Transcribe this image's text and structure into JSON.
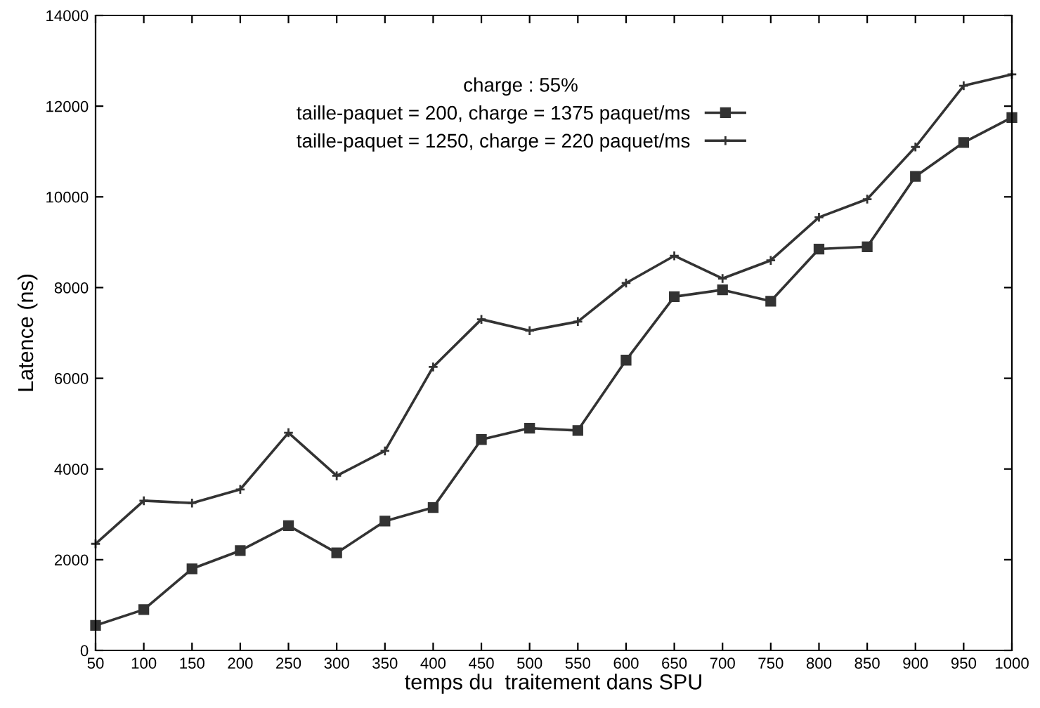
{
  "chart_data": {
    "type": "line",
    "xlabel": "temps du  traitement dans SPU",
    "ylabel": "Latence (ns)",
    "legend_title": "charge : 55%",
    "legend": "top left",
    "grid": false,
    "x": [
      50,
      100,
      150,
      200,
      250,
      300,
      350,
      400,
      450,
      500,
      550,
      600,
      650,
      700,
      750,
      800,
      850,
      900,
      950,
      1000
    ],
    "series": [
      {
        "name": "taille-paquet = 200, charge = 1375 paquet/ms",
        "color": "#333333",
        "marker": "square",
        "values": [
          550,
          900,
          1800,
          2200,
          2750,
          2150,
          2850,
          3150,
          4650,
          4900,
          4850,
          6400,
          7800,
          7950,
          7700,
          8850,
          8900,
          10450,
          11200,
          11750
        ]
      },
      {
        "name": "taille-paquet = 1250, charge = 220 paquet/ms",
        "color": "#333333",
        "marker": "cross",
        "values": [
          2350,
          3300,
          3250,
          3550,
          4800,
          3850,
          4400,
          6250,
          7300,
          7050,
          7250,
          8100,
          8700,
          8200,
          8600,
          9550,
          9950,
          11100,
          12450,
          12700
        ]
      }
    ],
    "xlim": [
      50,
      1000
    ],
    "xticks": [
      50,
      100,
      150,
      200,
      250,
      300,
      350,
      400,
      450,
      500,
      550,
      600,
      650,
      700,
      750,
      800,
      850,
      900,
      950,
      1000
    ],
    "ylim": [
      0,
      14000
    ],
    "yticks": [
      0,
      2000,
      4000,
      6000,
      8000,
      10000,
      12000,
      14000
    ]
  }
}
